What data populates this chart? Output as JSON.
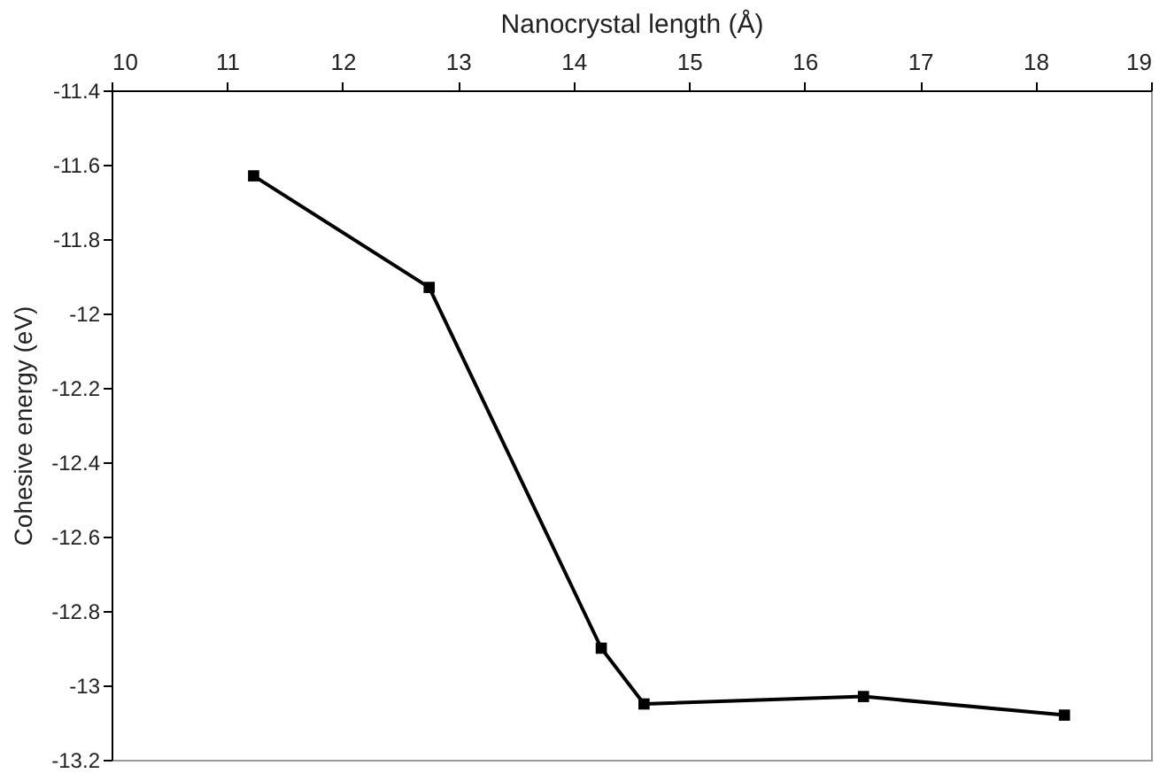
{
  "chart_data": {
    "type": "line",
    "xlabel": "Nanocrystal length (Å)",
    "ylabel": "Cohesive energy (eV)",
    "x": [
      11.23,
      12.75,
      14.24,
      14.61,
      16.51,
      18.25
    ],
    "series": [
      {
        "color": "#000000",
        "values": [
          -11.63,
          -11.93,
          -12.9,
          -13.05,
          -13.03,
          -13.08
        ]
      }
    ],
    "xlim": [
      10,
      19
    ],
    "xticks": [
      10,
      11,
      12,
      13,
      14,
      15,
      16,
      17,
      18,
      19
    ],
    "ylim": [
      -13.2,
      -11.4
    ],
    "yticks": [
      -11.4,
      -11.6,
      -11.8,
      -12,
      -12.2,
      -12.4,
      -12.6,
      -12.8,
      -13,
      -13.2
    ],
    "grid": false,
    "marker": "square",
    "line_style": "solid"
  }
}
